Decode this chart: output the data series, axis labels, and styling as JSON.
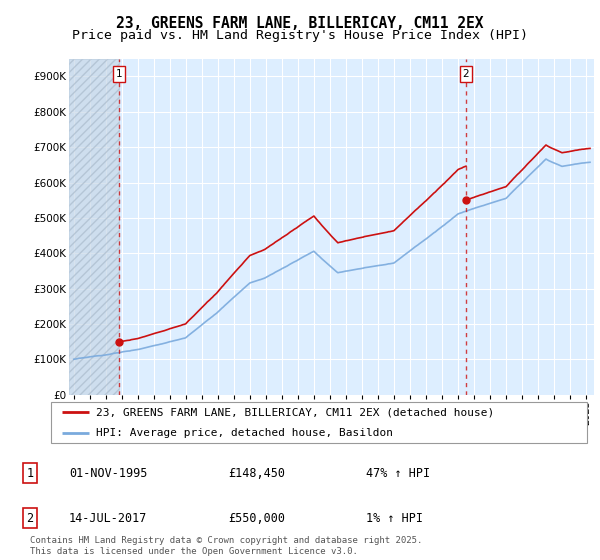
{
  "title": "23, GREENS FARM LANE, BILLERICAY, CM11 2EX",
  "subtitle": "Price paid vs. HM Land Registry's House Price Index (HPI)",
  "ylim": [
    0,
    950000
  ],
  "yticks": [
    0,
    100000,
    200000,
    300000,
    400000,
    500000,
    600000,
    700000,
    800000,
    900000
  ],
  "ytick_labels": [
    "£0",
    "£100K",
    "£200K",
    "£300K",
    "£400K",
    "£500K",
    "£600K",
    "£700K",
    "£800K",
    "£900K"
  ],
  "xlim_start": 1992.7,
  "xlim_end": 2025.5,
  "xticks": [
    1993,
    1994,
    1995,
    1996,
    1997,
    1998,
    1999,
    2000,
    2001,
    2002,
    2003,
    2004,
    2005,
    2006,
    2007,
    2008,
    2009,
    2010,
    2011,
    2012,
    2013,
    2014,
    2015,
    2016,
    2017,
    2018,
    2019,
    2020,
    2021,
    2022,
    2023,
    2024,
    2025
  ],
  "hpi_color": "#7aaadd",
  "price_color": "#cc1111",
  "bg_color": "#ddeeff",
  "grid_color": "#ffffff",
  "legend_label_price": "23, GREENS FARM LANE, BILLERICAY, CM11 2EX (detached house)",
  "legend_label_hpi": "HPI: Average price, detached house, Basildon",
  "point1_date": "01-NOV-1995",
  "point1_price": 148450,
  "point1_hpi_text": "47% ↑ HPI",
  "point2_date": "14-JUL-2017",
  "point2_price": 550000,
  "point2_hpi_text": "1% ↑ HPI",
  "footnote": "Contains HM Land Registry data © Crown copyright and database right 2025.\nThis data is licensed under the Open Government Licence v3.0.",
  "title_fontsize": 10.5,
  "subtitle_fontsize": 9.5,
  "tick_fontsize": 7.5,
  "legend_fontsize": 8,
  "footnote_fontsize": 6.5
}
